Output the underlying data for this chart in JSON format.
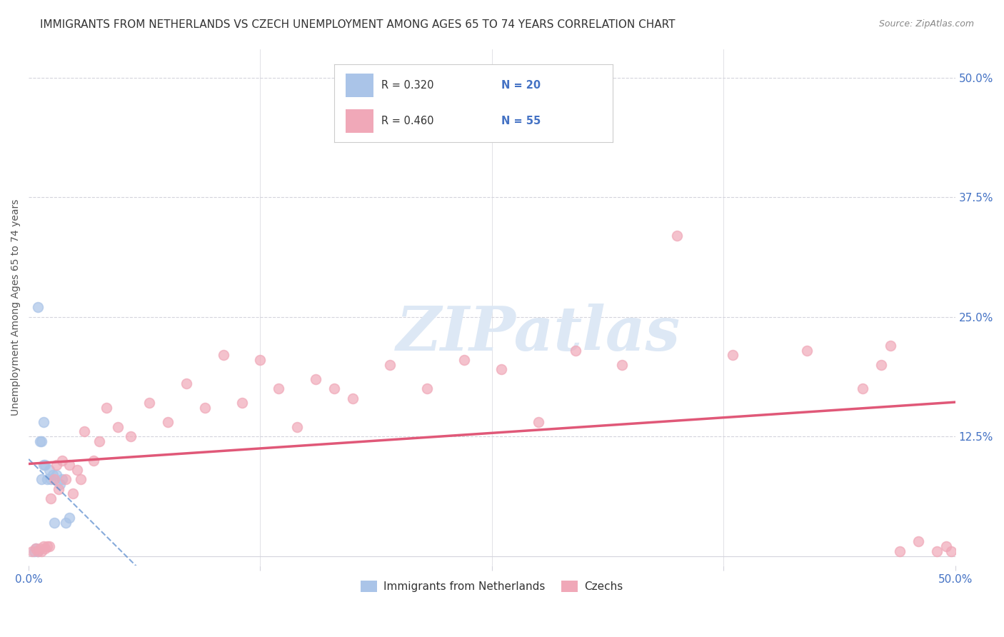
{
  "title": "IMMIGRANTS FROM NETHERLANDS VS CZECH UNEMPLOYMENT AMONG AGES 65 TO 74 YEARS CORRELATION CHART",
  "source": "Source: ZipAtlas.com",
  "ylabel": "Unemployment Among Ages 65 to 74 years",
  "blue_label": "Immigrants from Netherlands",
  "pink_label": "Czechs",
  "blue_R": 0.32,
  "blue_N": 20,
  "pink_R": 0.46,
  "pink_N": 55,
  "xlim": [
    0.0,
    0.5
  ],
  "ylim": [
    -0.01,
    0.53
  ],
  "xticks": [
    0.0,
    0.125,
    0.25,
    0.375,
    0.5
  ],
  "xtick_labels": [
    "0.0%",
    "",
    "",
    "",
    "50.0%"
  ],
  "yticks_right": [
    0.0,
    0.125,
    0.25,
    0.375,
    0.5
  ],
  "ytick_labels_right": [
    "",
    "12.5%",
    "25.0%",
    "37.5%",
    "50.0%"
  ],
  "blue_scatter_x": [
    0.003,
    0.004,
    0.005,
    0.005,
    0.006,
    0.007,
    0.007,
    0.008,
    0.008,
    0.009,
    0.01,
    0.011,
    0.012,
    0.013,
    0.014,
    0.015,
    0.017,
    0.018,
    0.02,
    0.022
  ],
  "blue_scatter_y": [
    0.005,
    0.008,
    0.005,
    0.26,
    0.12,
    0.08,
    0.12,
    0.095,
    0.14,
    0.095,
    0.08,
    0.09,
    0.08,
    0.085,
    0.035,
    0.085,
    0.075,
    0.08,
    0.035,
    0.04
  ],
  "pink_scatter_x": [
    0.002,
    0.004,
    0.005,
    0.006,
    0.007,
    0.008,
    0.009,
    0.01,
    0.011,
    0.012,
    0.014,
    0.015,
    0.016,
    0.018,
    0.02,
    0.022,
    0.024,
    0.026,
    0.028,
    0.03,
    0.035,
    0.038,
    0.042,
    0.048,
    0.055,
    0.065,
    0.075,
    0.085,
    0.095,
    0.105,
    0.115,
    0.125,
    0.135,
    0.145,
    0.155,
    0.165,
    0.175,
    0.195,
    0.215,
    0.235,
    0.255,
    0.275,
    0.295,
    0.32,
    0.35,
    0.38,
    0.42,
    0.45,
    0.46,
    0.465,
    0.47,
    0.48,
    0.49,
    0.495,
    0.498
  ],
  "pink_scatter_y": [
    0.005,
    0.008,
    0.005,
    0.008,
    0.005,
    0.01,
    0.008,
    0.01,
    0.01,
    0.06,
    0.08,
    0.095,
    0.07,
    0.1,
    0.08,
    0.095,
    0.065,
    0.09,
    0.08,
    0.13,
    0.1,
    0.12,
    0.155,
    0.135,
    0.125,
    0.16,
    0.14,
    0.18,
    0.155,
    0.21,
    0.16,
    0.205,
    0.175,
    0.135,
    0.185,
    0.175,
    0.165,
    0.2,
    0.175,
    0.205,
    0.195,
    0.14,
    0.215,
    0.2,
    0.335,
    0.21,
    0.215,
    0.175,
    0.2,
    0.22,
    0.005,
    0.015,
    0.005,
    0.01,
    0.005
  ],
  "blue_color": "#aac4e8",
  "pink_color": "#f0a8b8",
  "blue_line_color": "#5588cc",
  "pink_line_color": "#e05878",
  "background_color": "#ffffff",
  "grid_color": "#d4d4dc",
  "title_fontsize": 11,
  "source_fontsize": 9,
  "axis_label_fontsize": 10,
  "tick_label_fontsize": 11,
  "tick_label_color": "#4472c4",
  "marker_size": 100,
  "watermark_color": "#dde8f5",
  "watermark_text": "ZIPatlas"
}
